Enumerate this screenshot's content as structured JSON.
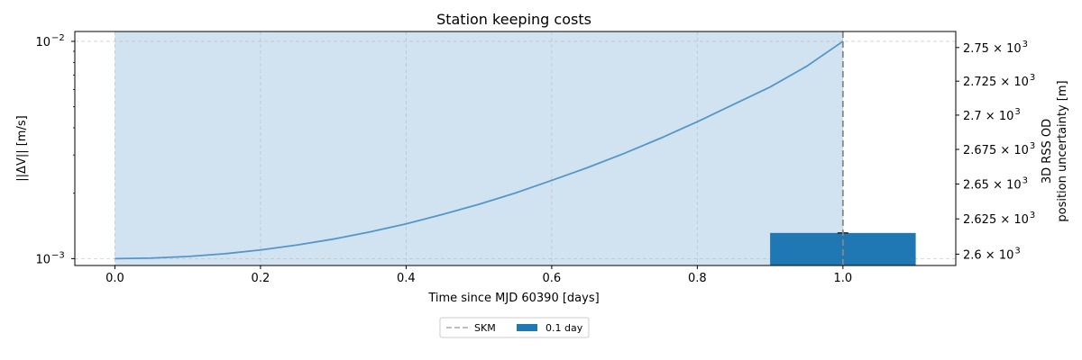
{
  "chart_data": {
    "type": "line",
    "title": "Station keeping costs",
    "xlabel": "Time since MJD 60390 [days]",
    "ylabel_left": "||ΔV|| [m/s]",
    "ylabel_right_lines": [
      "3D RSS OD",
      "position uncertainty [m]"
    ],
    "xlim": [
      -0.055,
      1.155
    ],
    "xticks": [
      0.0,
      0.2,
      0.4,
      0.6,
      0.8,
      1.0
    ],
    "xtick_labels": [
      "0.0",
      "0.2",
      "0.4",
      "0.6",
      "0.8",
      "1.0"
    ],
    "left_axis": {
      "scale": "log",
      "ylim": [
        0.00093,
        0.0111
      ],
      "ticks": [
        0.001,
        0.01
      ],
      "tick_labels": [
        {
          "base": "10",
          "exp": "−3"
        },
        {
          "base": "10",
          "exp": "−2"
        }
      ]
    },
    "right_axis": {
      "scale": "log",
      "ylim": [
        2592,
        2762
      ],
      "ticks": [
        2600,
        2625,
        2650,
        2675,
        2700,
        2725,
        2750
      ],
      "tick_labels": [
        {
          "mant": "2.6",
          "base": "10",
          "exp": "3"
        },
        {
          "mant": "2.625",
          "base": "10",
          "exp": "3"
        },
        {
          "mant": "2.65",
          "base": "10",
          "exp": "3"
        },
        {
          "mant": "2.675",
          "base": "10",
          "exp": "3"
        },
        {
          "mant": "2.7",
          "base": "10",
          "exp": "3"
        },
        {
          "mant": "2.725",
          "base": "10",
          "exp": "3"
        },
        {
          "mant": "2.75",
          "base": "10",
          "exp": "3"
        }
      ]
    },
    "shaded_region": {
      "x": [
        0.0,
        1.0
      ],
      "color": "#d1e3f0"
    },
    "curve": {
      "axis": "left",
      "color": "#5596c9",
      "x": [
        0.0,
        0.05,
        0.1,
        0.15,
        0.2,
        0.25,
        0.3,
        0.35,
        0.4,
        0.45,
        0.5,
        0.55,
        0.6,
        0.65,
        0.7,
        0.75,
        0.8,
        0.85,
        0.9,
        0.95,
        1.0
      ],
      "y": [
        0.001,
        0.001006,
        0.001023,
        0.001053,
        0.001096,
        0.001155,
        0.00123,
        0.001327,
        0.001445,
        0.001597,
        0.001778,
        0.002004,
        0.002291,
        0.00263,
        0.003055,
        0.003589,
        0.004266,
        0.005129,
        0.006165,
        0.007674,
        0.01
      ]
    },
    "skm_line": {
      "x": 1.0,
      "label": "SKM",
      "color": "#888888"
    },
    "bars": [
      {
        "axis": "right",
        "x_center": 1.0,
        "width": 0.2,
        "value": 2615,
        "error": 0.2,
        "label": "0.1 day",
        "color": "#1f77b4"
      }
    ],
    "legend": {
      "placement": "below-center",
      "entries": [
        "SKM",
        "0.1 day"
      ]
    },
    "grid": true
  }
}
